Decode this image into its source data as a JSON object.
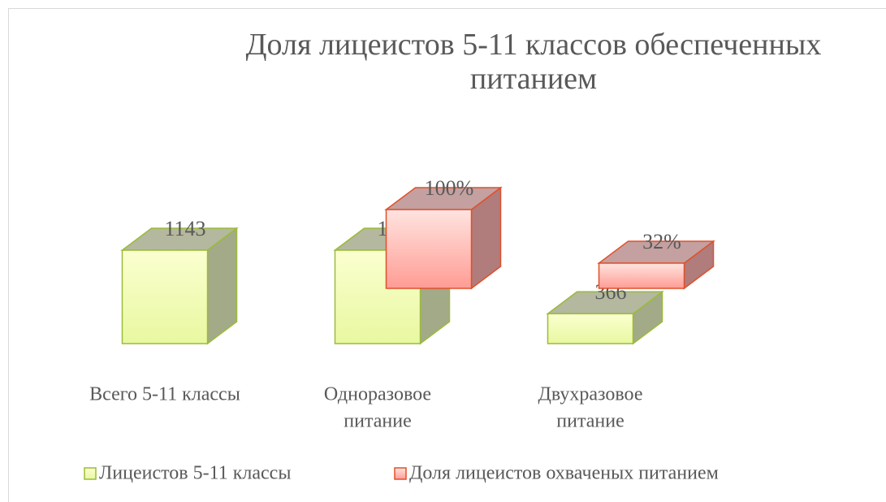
{
  "chart_data": {
    "type": "bar3d",
    "title": "Доля лицеистов 5-11 классов обеспеченных питанием",
    "categories": [
      [
        "Всего 5-11 классы"
      ],
      [
        "Одноразовое",
        "питание"
      ],
      [
        "Двухразовое",
        "питание"
      ]
    ],
    "series": [
      {
        "name": "Лицеистов 5-11 классы",
        "color": "#e8f8a0",
        "values": [
          1143,
          1143,
          366
        ]
      },
      {
        "name": "Доля лицеистов охваченых питанием",
        "color": "#ffb0a8",
        "axis": "y2",
        "values": [
          null,
          100,
          32
        ],
        "value_labels": [
          null,
          "100%",
          "32%"
        ]
      }
    ],
    "legend": "bottom"
  }
}
